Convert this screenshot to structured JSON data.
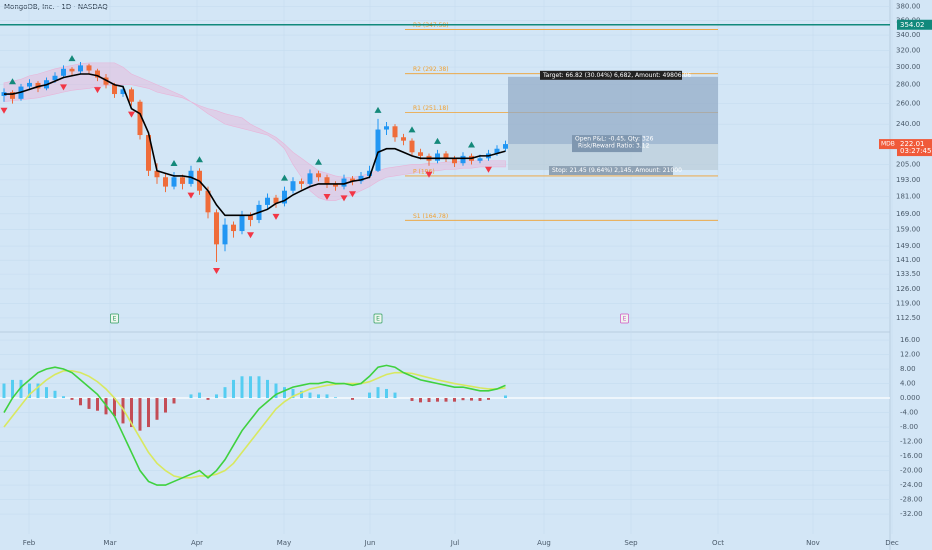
{
  "chart_data": [
    {
      "type": "candlestick",
      "title": "MongoDB, Inc. · 1D · NASDAQ",
      "log_scale": true,
      "grid": true,
      "ylim": [
        107.3,
        390
      ],
      "yticks": [
        {
          "value": 380,
          "label": "380.00"
        },
        {
          "value": 360,
          "label": "360.00"
        },
        {
          "value": 340,
          "label": "340.00"
        },
        {
          "value": 320,
          "label": "320.00"
        },
        {
          "value": 300,
          "label": "300.00"
        },
        {
          "value": 280,
          "label": "280.00"
        },
        {
          "value": 260,
          "label": "260.00"
        },
        {
          "value": 240,
          "label": "240.00"
        },
        {
          "value": 205,
          "label": "205.00"
        },
        {
          "value": 193,
          "label": "193.00"
        },
        {
          "value": 181,
          "label": "181.00"
        },
        {
          "value": 169,
          "label": "169.00"
        },
        {
          "value": 159,
          "label": "159.00"
        },
        {
          "value": 149,
          "label": "149.00"
        },
        {
          "value": 141,
          "label": "141.00"
        },
        {
          "value": 133.5,
          "label": "133.50"
        },
        {
          "value": 126,
          "label": "126.00"
        },
        {
          "value": 119,
          "label": "119.00"
        },
        {
          "value": 112.5,
          "label": "112.50"
        }
      ],
      "x_labels": [
        "Feb",
        "Mar",
        "Apr",
        "May",
        "Jun",
        "Jul",
        "Aug",
        "Sep",
        "Oct",
        "Nov",
        "Dec"
      ],
      "up_color": "#2196f3",
      "down_color": "#ef6c3a",
      "ohlc": [
        [
          268,
          276,
          262,
          272
        ],
        [
          272,
          274,
          260,
          265
        ],
        [
          265,
          281,
          263,
          278
        ],
        [
          278,
          286,
          274,
          282
        ],
        [
          282,
          284,
          272,
          276
        ],
        [
          276,
          288,
          274,
          285
        ],
        [
          285,
          294,
          282,
          290
        ],
        [
          290,
          302,
          287,
          298
        ],
        [
          298,
          300,
          290,
          295
        ],
        [
          295,
          306,
          292,
          302
        ],
        [
          302,
          304,
          292,
          296
        ],
        [
          296,
          298,
          284,
          288
        ],
        [
          288,
          292,
          276,
          280
        ],
        [
          280,
          282,
          266,
          270
        ],
        [
          270,
          279,
          267,
          275
        ],
        [
          275,
          277,
          258,
          262
        ],
        [
          262,
          264,
          226,
          230
        ],
        [
          230,
          232,
          196,
          200
        ],
        [
          200,
          206,
          190,
          195
        ],
        [
          195,
          198,
          184,
          188
        ],
        [
          188,
          199,
          186,
          195
        ],
        [
          195,
          197,
          186,
          190
        ],
        [
          190,
          204,
          188,
          200
        ],
        [
          200,
          202,
          182,
          185
        ],
        [
          185,
          188,
          166,
          170
        ],
        [
          170,
          172,
          140,
          150
        ],
        [
          150,
          166,
          146,
          162
        ],
        [
          162,
          164,
          154,
          158
        ],
        [
          158,
          171,
          156,
          168
        ],
        [
          168,
          170,
          161,
          165
        ],
        [
          165,
          178,
          163,
          175
        ],
        [
          175,
          183,
          172,
          180
        ],
        [
          180,
          182,
          173,
          176
        ],
        [
          176,
          188,
          174,
          185
        ],
        [
          185,
          195,
          183,
          192
        ],
        [
          192,
          194,
          186,
          190
        ],
        [
          190,
          201,
          188,
          198
        ],
        [
          198,
          200,
          192,
          195
        ],
        [
          195,
          197,
          187,
          190
        ],
        [
          190,
          192,
          185,
          188
        ],
        [
          188,
          197,
          186,
          194
        ],
        [
          194,
          196,
          189,
          192
        ],
        [
          192,
          199,
          190,
          196
        ],
        [
          196,
          204,
          194,
          200
        ],
        [
          200,
          245,
          199,
          235
        ],
        [
          235,
          242,
          230,
          238
        ],
        [
          238,
          240,
          224,
          228
        ],
        [
          228,
          231,
          221,
          225
        ],
        [
          225,
          227,
          212,
          215
        ],
        [
          215,
          218,
          209,
          212
        ],
        [
          212,
          214,
          204,
          208
        ],
        [
          208,
          217,
          206,
          214
        ],
        [
          214,
          216,
          207,
          210
        ],
        [
          210,
          212,
          203,
          206
        ],
        [
          206,
          215,
          204,
          212
        ],
        [
          212,
          214,
          205,
          208
        ],
        [
          208,
          213,
          206,
          210
        ],
        [
          210,
          217,
          208,
          214
        ],
        [
          214,
          221,
          212,
          218
        ],
        [
          218,
          225,
          216,
          222
        ]
      ],
      "line": {
        "color": "#000000",
        "values": [
          270,
          270,
          272,
          275,
          278,
          280,
          284,
          288,
          290,
          292,
          292,
          290,
          285,
          280,
          278,
          255,
          250,
          232,
          200,
          198,
          196,
          196,
          195,
          192,
          185,
          175,
          168,
          168,
          168,
          168,
          170,
          172,
          176,
          178,
          182,
          185,
          188,
          190,
          190,
          190,
          190,
          192,
          193,
          195,
          215,
          218,
          218,
          215,
          212,
          210,
          210,
          210,
          210,
          210,
          210,
          210,
          212,
          212,
          214,
          216
        ]
      },
      "cloud": {
        "color": "#e8b4d8",
        "upper": [
          282,
          284,
          286,
          290,
          292,
          295,
          298,
          300,
          302,
          304,
          305,
          305,
          305,
          305,
          300,
          292,
          288,
          284,
          280,
          276,
          272,
          268,
          262,
          258,
          255,
          253,
          250,
          248,
          246,
          240,
          236,
          232,
          228,
          222,
          215,
          210,
          205,
          200,
          198,
          196,
          195,
          195,
          196,
          198,
          200,
          202,
          203,
          204,
          205,
          205,
          206,
          206,
          207,
          207,
          208,
          208,
          208,
          208,
          208,
          208
        ],
        "lower": [
          262,
          263,
          264,
          265,
          266,
          268,
          270,
          272,
          274,
          275,
          276,
          278,
          279,
          280,
          280,
          280,
          278,
          276,
          272,
          270,
          268,
          266,
          262,
          256,
          250,
          245,
          240,
          238,
          236,
          234,
          232,
          230,
          225,
          218,
          205,
          195,
          185,
          180,
          178,
          178,
          180,
          182,
          185,
          188,
          192,
          195,
          196,
          197,
          198,
          199,
          200,
          200,
          201,
          201,
          202,
          202,
          203,
          203,
          203,
          203
        ]
      },
      "up_markers": [
        1,
        8,
        20,
        23,
        33,
        37,
        44,
        48,
        51,
        55
      ],
      "up_marker_color": "#14897a",
      "down_markers": [
        0,
        7,
        11,
        15,
        22,
        25,
        29,
        32,
        38,
        40,
        41,
        50,
        57
      ],
      "down_marker_color": "#f23645",
      "pivot_color": "#f0a030",
      "pivots": [
        {
          "label": "R3 (347.58)",
          "value": 347.58
        },
        {
          "label": "R2 (292.38)",
          "value": 292.38
        },
        {
          "label": "R1 (251.18)",
          "value": 251.18
        },
        {
          "label": "P (196)",
          "value": 196
        },
        {
          "label": "S1 (164.78)",
          "value": 164.78
        }
      ],
      "alert_line": {
        "value": 354.02,
        "color": "#11897c"
      },
      "last_price": {
        "symbol": "MDB",
        "value": 222.01,
        "time": "03:27:45",
        "color": "#f05a3a"
      },
      "position": {
        "entry": 222,
        "target": 288.8,
        "stop": 200.6,
        "target_text": "Target: 66.82 (30.04%) 6,682, Amount: 49806.06",
        "open_text": "Open P&L: -0.45, Qty: 326",
        "ratio_text": "Risk/Reward Ratio: 3.12",
        "stop_text": "Stop: 21.45 (9.64%) 2,145, Amount: 21000"
      },
      "events": [
        {
          "label": "E",
          "index": 13
        },
        {
          "label": "E",
          "index": 44
        },
        {
          "label": "E",
          "index": 73
        }
      ]
    },
    {
      "type": "macd",
      "ylim": [
        -37.5,
        17.66
      ],
      "yticks": [
        {
          "value": 16,
          "label": "16.00"
        },
        {
          "value": 12,
          "label": "12.00"
        },
        {
          "value": 8,
          "label": "8.00"
        },
        {
          "value": 4,
          "label": "4.00"
        },
        {
          "value": 0,
          "label": "0.000"
        },
        {
          "value": -4,
          "label": "-4.00"
        },
        {
          "value": -8,
          "label": "-8.00"
        },
        {
          "value": -12,
          "label": "-12.00"
        },
        {
          "value": -16,
          "label": "-16.00"
        },
        {
          "value": -20,
          "label": "-20.00"
        },
        {
          "value": -24,
          "label": "-24.00"
        },
        {
          "value": -28,
          "label": "-28.00"
        },
        {
          "value": -32,
          "label": "-32.00"
        }
      ],
      "pos_color": "#3ec8f0",
      "neg_color": "#c0303a",
      "histogram": [
        4,
        5,
        5,
        4,
        4,
        3,
        2,
        0.5,
        -0.5,
        -2,
        -3,
        -3.5,
        -4.5,
        -5,
        -7,
        -8,
        -9,
        -8,
        -6,
        -4,
        -1.5,
        0,
        1,
        1.5,
        -0.5,
        1,
        3,
        5,
        6,
        6,
        6,
        5,
        4,
        3,
        2.5,
        2,
        1.5,
        1,
        1,
        0.2,
        0,
        -0.5,
        0,
        1.5,
        3,
        2.5,
        1.5,
        0,
        -0.8,
        -1.2,
        -1.1,
        -1,
        -1,
        -1,
        -0.6,
        -0.7,
        -0.8,
        -0.5,
        0,
        0.7
      ],
      "series": [
        {
          "color": "#3fd13f",
          "values": [
            -4,
            0,
            3,
            5,
            7,
            8,
            8.5,
            8,
            7,
            5,
            3,
            1,
            -2,
            -5,
            -10,
            -15,
            -20,
            -23,
            -24,
            -24,
            -23,
            -22,
            -21,
            -20,
            -22,
            -20,
            -17,
            -13,
            -9,
            -6,
            -3,
            -1,
            1,
            2,
            3,
            3.5,
            4,
            4,
            4.5,
            4,
            4,
            3.5,
            4,
            6,
            8.5,
            9,
            8.5,
            7,
            6,
            5,
            4.5,
            4,
            3.5,
            3,
            3,
            2.5,
            2,
            2,
            2.5,
            3.5
          ]
        },
        {
          "color": "#d8e860",
          "values": [
            -8,
            -5,
            -2,
            1,
            3,
            5,
            6.5,
            7.5,
            7.5,
            7,
            6,
            4.5,
            2.5,
            0,
            -3,
            -7,
            -11,
            -15,
            -18,
            -20,
            -21.5,
            -22,
            -22,
            -21.5,
            -21.5,
            -21,
            -20,
            -18,
            -15,
            -12,
            -9,
            -6,
            -3,
            -1,
            0.5,
            1.5,
            2.5,
            3,
            3.5,
            3.8,
            4,
            4,
            4,
            4.5,
            5.5,
            6.5,
            7,
            7,
            6.8,
            6.2,
            5.6,
            5,
            4.5,
            4,
            3.6,
            3.2,
            2.8,
            2.5,
            2.5,
            2.8
          ]
        }
      ]
    }
  ]
}
